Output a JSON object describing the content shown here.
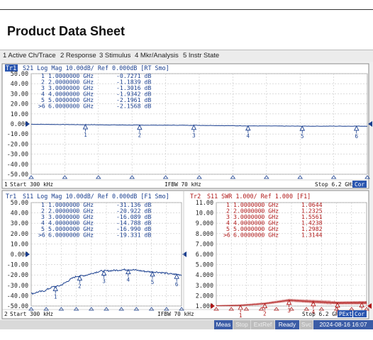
{
  "header": {
    "title": "Product Data Sheet"
  },
  "menu": [
    {
      "id": "active-ch",
      "label": "1 Active Ch/Trace"
    },
    {
      "id": "response",
      "label": "2 Response"
    },
    {
      "id": "stimulus",
      "label": "3 Stimulus"
    },
    {
      "id": "mkr",
      "label": "4 Mkr/Analysis"
    },
    {
      "id": "instr",
      "label": "5 Instr State"
    }
  ],
  "colors": {
    "s21": "#1a3f8f",
    "s11": "#1a3f8f",
    "swr": "#b01818",
    "grid": "#c8c8c8",
    "panel": "#ffffff"
  },
  "panels": [
    {
      "id": "s21",
      "channel": "1",
      "trace_label": "Tr1",
      "header": "S21 Log Mag 10.00dB/ Ref 0.000dB [RT Smo]",
      "start": "Start 300 kHz",
      "ifbw": "IFBW 70 kHz",
      "stop": "Stop 6.2 GHz",
      "cor": "Cor",
      "yticks": [
        "50.00",
        "40.00",
        "30.00",
        "20.00",
        "10.00",
        "0.000",
        "-10.00",
        "-20.00",
        "-30.00",
        "-40.00",
        "-50.00"
      ],
      "marker_table": [
        {
          "id": "1",
          "freq": "1.0000000 GHz",
          "val": "-0.7271 dB"
        },
        {
          "id": "2",
          "freq": "2.0000000 GHz",
          "val": "-1.1839 dB"
        },
        {
          "id": "3",
          "freq": "3.0000000 GHz",
          "val": "-1.3016 dB"
        },
        {
          "id": "4",
          "freq": "4.0000000 GHz",
          "val": "-1.9342 dB"
        },
        {
          "id": "5",
          "freq": "5.0000000 GHz",
          "val": "-2.1961 dB"
        },
        {
          "id": ">6",
          "freq": "6.0000000 GHz",
          "val": "-2.1568 dB"
        }
      ]
    },
    {
      "id": "s11",
      "channel": "2",
      "trace_label": "Tr1",
      "header": "S11 Log Mag 10.00dB/ Ref 0.000dB [F1 Smo]",
      "start": "Start 300 kHz",
      "ifbw": "IFBW 70 kHz",
      "yticks": [
        "50.00",
        "40.00",
        "30.00",
        "20.00",
        "10.00",
        "0.000",
        "-10.00",
        "-20.00",
        "-30.00",
        "-40.00",
        "-50.00"
      ],
      "marker_table": [
        {
          "id": "1",
          "freq": "1.0000000 GHz",
          "val": "-31.136 dB"
        },
        {
          "id": "2",
          "freq": "2.0000000 GHz",
          "val": "-20.922 dB"
        },
        {
          "id": "3",
          "freq": "3.0000000 GHz",
          "val": "-16.089 dB"
        },
        {
          "id": "4",
          "freq": "4.0000000 GHz",
          "val": "-14.788 dB"
        },
        {
          "id": "5",
          "freq": "5.0000000 GHz",
          "val": "-16.990 dB"
        },
        {
          "id": ">6",
          "freq": "6.0000000 GHz",
          "val": "-19.331 dB"
        }
      ]
    },
    {
      "id": "swr",
      "trace_label": "Tr2",
      "header": "S11 SWR 1.000/ Ref 1.000 [F1]",
      "stop": "Stop 6.2 GHz",
      "pext": "PExt",
      "cor": "Cor",
      "yticks": [
        "11.00",
        "10.00",
        "9.000",
        "8.000",
        "7.000",
        "6.000",
        "5.000",
        "4.000",
        "3.000",
        "2.000",
        "1.000"
      ],
      "marker_table": [
        {
          "id": "1",
          "freq": "1.0000000 GHz",
          "val": "1.0644"
        },
        {
          "id": "2",
          "freq": "2.0000000 GHz",
          "val": "1.2325"
        },
        {
          "id": "3",
          "freq": "3.0000000 GHz",
          "val": "1.5561"
        },
        {
          "id": "4",
          "freq": "4.0000000 GHz",
          "val": "1.4238"
        },
        {
          "id": "5",
          "freq": "5.0000000 GHz",
          "val": "1.2982"
        },
        {
          "id": ">6",
          "freq": "6.0000000 GHz",
          "val": "1.3144"
        }
      ]
    }
  ],
  "status": {
    "meas": "Meas",
    "stop": "Stop",
    "extref": "ExtRef",
    "ready": "Ready",
    "svc": "Svc",
    "timestamp": "2024-08-16 16:07"
  },
  "chart_data": [
    {
      "type": "line",
      "title": "S21 Log Mag 10.00dB/ Ref 0.000dB",
      "ylim": [
        -50,
        50
      ],
      "xlim_ghz": [
        0.0003,
        6.2
      ],
      "series": [
        {
          "name": "S21",
          "x": [
            1,
            2,
            3,
            4,
            5,
            6
          ],
          "values": [
            -0.7271,
            -1.1839,
            -1.3016,
            -1.9342,
            -2.1961,
            -2.1568
          ]
        }
      ]
    },
    {
      "type": "line",
      "title": "S11 Log Mag 10.00dB/ Ref 0.000dB",
      "ylim": [
        -50,
        50
      ],
      "xlim_ghz": [
        0.0003,
        6.2
      ],
      "series": [
        {
          "name": "S11",
          "x": [
            1,
            2,
            3,
            4,
            5,
            6
          ],
          "values": [
            -31.136,
            -20.922,
            -16.089,
            -14.788,
            -16.99,
            -19.331
          ]
        }
      ]
    },
    {
      "type": "line",
      "title": "S11 SWR 1.000/ Ref 1.000",
      "ylim": [
        1,
        11
      ],
      "xlim_ghz": [
        0.0003,
        6.2
      ],
      "series": [
        {
          "name": "SWR",
          "x": [
            1,
            2,
            3,
            4,
            5,
            6
          ],
          "values": [
            1.0644,
            1.2325,
            1.5561,
            1.4238,
            1.2982,
            1.3144
          ]
        }
      ]
    }
  ]
}
